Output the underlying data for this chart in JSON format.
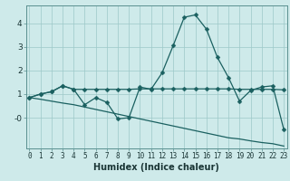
{
  "xlabel": "Humidex (Indice chaleur)",
  "background_color": "#ceeaea",
  "grid_color": "#9dc8c8",
  "line_color": "#1a6060",
  "x_data": [
    0,
    1,
    2,
    3,
    4,
    5,
    6,
    7,
    8,
    9,
    10,
    11,
    12,
    13,
    14,
    15,
    16,
    17,
    18,
    19,
    20,
    21,
    22,
    23
  ],
  "y_main": [
    0.85,
    1.0,
    1.1,
    1.35,
    1.2,
    0.55,
    0.85,
    0.65,
    -0.05,
    0.0,
    1.3,
    1.2,
    1.9,
    3.05,
    4.25,
    4.35,
    3.75,
    2.55,
    1.7,
    0.7,
    1.15,
    1.3,
    1.35,
    -0.5
  ],
  "y_line1": [
    0.85,
    1.0,
    1.1,
    1.35,
    1.2,
    1.2,
    1.2,
    1.2,
    1.2,
    1.2,
    1.22,
    1.22,
    1.22,
    1.22,
    1.22,
    1.22,
    1.22,
    1.22,
    1.22,
    1.2,
    1.2,
    1.2,
    1.2,
    1.18
  ],
  "y_line2": [
    0.85,
    0.78,
    0.7,
    0.62,
    0.55,
    0.45,
    0.35,
    0.25,
    0.15,
    0.05,
    -0.05,
    -0.15,
    -0.25,
    -0.35,
    -0.45,
    -0.55,
    -0.65,
    -0.75,
    -0.85,
    -0.9,
    -0.98,
    -1.05,
    -1.1,
    -1.2
  ],
  "ylim": [
    -1.3,
    4.75
  ],
  "xlim": [
    -0.3,
    23.3
  ],
  "xticks": [
    0,
    1,
    2,
    3,
    4,
    5,
    6,
    7,
    8,
    9,
    10,
    11,
    12,
    13,
    14,
    15,
    16,
    17,
    18,
    19,
    20,
    21,
    22,
    23
  ],
  "yticks": [
    0,
    1,
    2,
    3,
    4
  ],
  "ytick_labels": [
    "-0",
    "1",
    "2",
    "3",
    "4"
  ],
  "xlabel_fontsize": 7,
  "tick_fontsize": 5.5,
  "ytick_fontsize": 6.5,
  "marker_size": 2.5,
  "line_width": 0.9
}
